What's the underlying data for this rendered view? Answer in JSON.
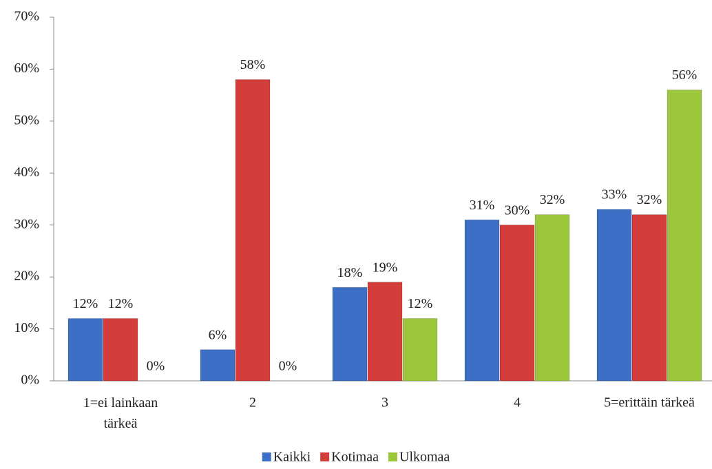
{
  "chart_data": {
    "type": "bar",
    "categories": [
      "1=ei lainkaan tärkeä",
      "2",
      "3",
      "4",
      "5=erittäin tärkeä"
    ],
    "series": [
      {
        "name": "Kaikki",
        "color": "#3d6fc6",
        "values": [
          12,
          6,
          18,
          31,
          33
        ],
        "value_labels": [
          "12%",
          "6%",
          "18%",
          "31%",
          "33%"
        ]
      },
      {
        "name": "Kotimaa",
        "color": "#d33d3a",
        "values": [
          12,
          58,
          19,
          30,
          32
        ],
        "value_labels": [
          "12%",
          "58%",
          "19%",
          "30%",
          "32%"
        ]
      },
      {
        "name": "Ulkomaa",
        "color": "#9cc73c",
        "values": [
          0,
          0,
          12,
          32,
          56
        ],
        "value_labels": [
          "0%",
          "0%",
          "12%",
          "32%",
          "56%"
        ]
      }
    ],
    "ylim": [
      0,
      70
    ],
    "yticks": [
      {
        "value": 0,
        "label": "0%"
      },
      {
        "value": 10,
        "label": "10%"
      },
      {
        "value": 20,
        "label": "20%"
      },
      {
        "value": 30,
        "label": "30%"
      },
      {
        "value": 40,
        "label": "40%"
      },
      {
        "value": 50,
        "label": "50%"
      },
      {
        "value": 60,
        "label": "60%"
      },
      {
        "value": 70,
        "label": "70%"
      }
    ],
    "grid": false,
    "legend": "bottom"
  }
}
